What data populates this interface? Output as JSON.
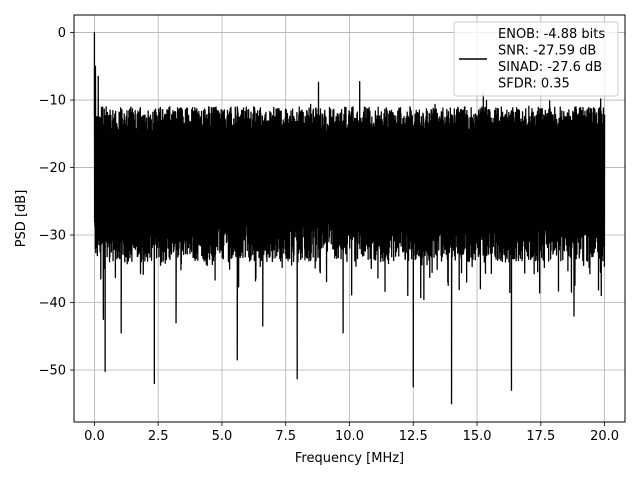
{
  "chart_data": {
    "type": "line",
    "title": "",
    "xlabel": "Frequency [MHz]",
    "ylabel": "PSD [dB]",
    "xlim": [
      -0.8,
      20.8
    ],
    "ylim": [
      -57.7,
      2.6
    ],
    "xticks": [
      0.0,
      2.5,
      5.0,
      7.5,
      10.0,
      12.5,
      15.0,
      17.5,
      20.0
    ],
    "xtick_labels": [
      "0.0",
      "2.5",
      "5.0",
      "7.5",
      "10.0",
      "12.5",
      "15.0",
      "17.5",
      "20.0"
    ],
    "yticks": [
      0,
      -10,
      -20,
      -30,
      -40,
      -50
    ],
    "ytick_labels": [
      "0",
      "−10",
      "−20",
      "−30",
      "−40",
      "−50"
    ],
    "grid": true,
    "legend_position": "top-right",
    "legend_entries": [
      "ENOB: -4.88 bits",
      "SNR: -27.59 dB",
      "SINAD: -27.6 dB",
      "SFDR: 0.35"
    ],
    "series": [
      {
        "color": "#000000",
        "noise_envelope": {
          "x_range": [
            0.0,
            20.0
          ],
          "typical_upper_db": -11,
          "typical_lower_db": -34,
          "max_peak_db": -6
        },
        "peaks": [
          {
            "x": 0.0,
            "y": 0.0
          },
          {
            "x": 0.04,
            "y": -5.0
          },
          {
            "x": 0.15,
            "y": -6.5
          }
        ],
        "dips": [
          {
            "x": 0.25,
            "y": -36.5
          },
          {
            "x": 0.35,
            "y": -42.5
          },
          {
            "x": 0.42,
            "y": -50.2
          },
          {
            "x": 1.05,
            "y": -44.5
          },
          {
            "x": 2.35,
            "y": -52.0
          },
          {
            "x": 3.2,
            "y": -43.0
          },
          {
            "x": 5.6,
            "y": -48.5
          },
          {
            "x": 6.6,
            "y": -43.5
          },
          {
            "x": 7.95,
            "y": -51.3
          },
          {
            "x": 9.75,
            "y": -44.5
          },
          {
            "x": 12.5,
            "y": -52.5
          },
          {
            "x": 14.0,
            "y": -55.0
          },
          {
            "x": 16.35,
            "y": -53.0
          },
          {
            "x": 18.8,
            "y": -42.0
          }
        ]
      }
    ]
  }
}
